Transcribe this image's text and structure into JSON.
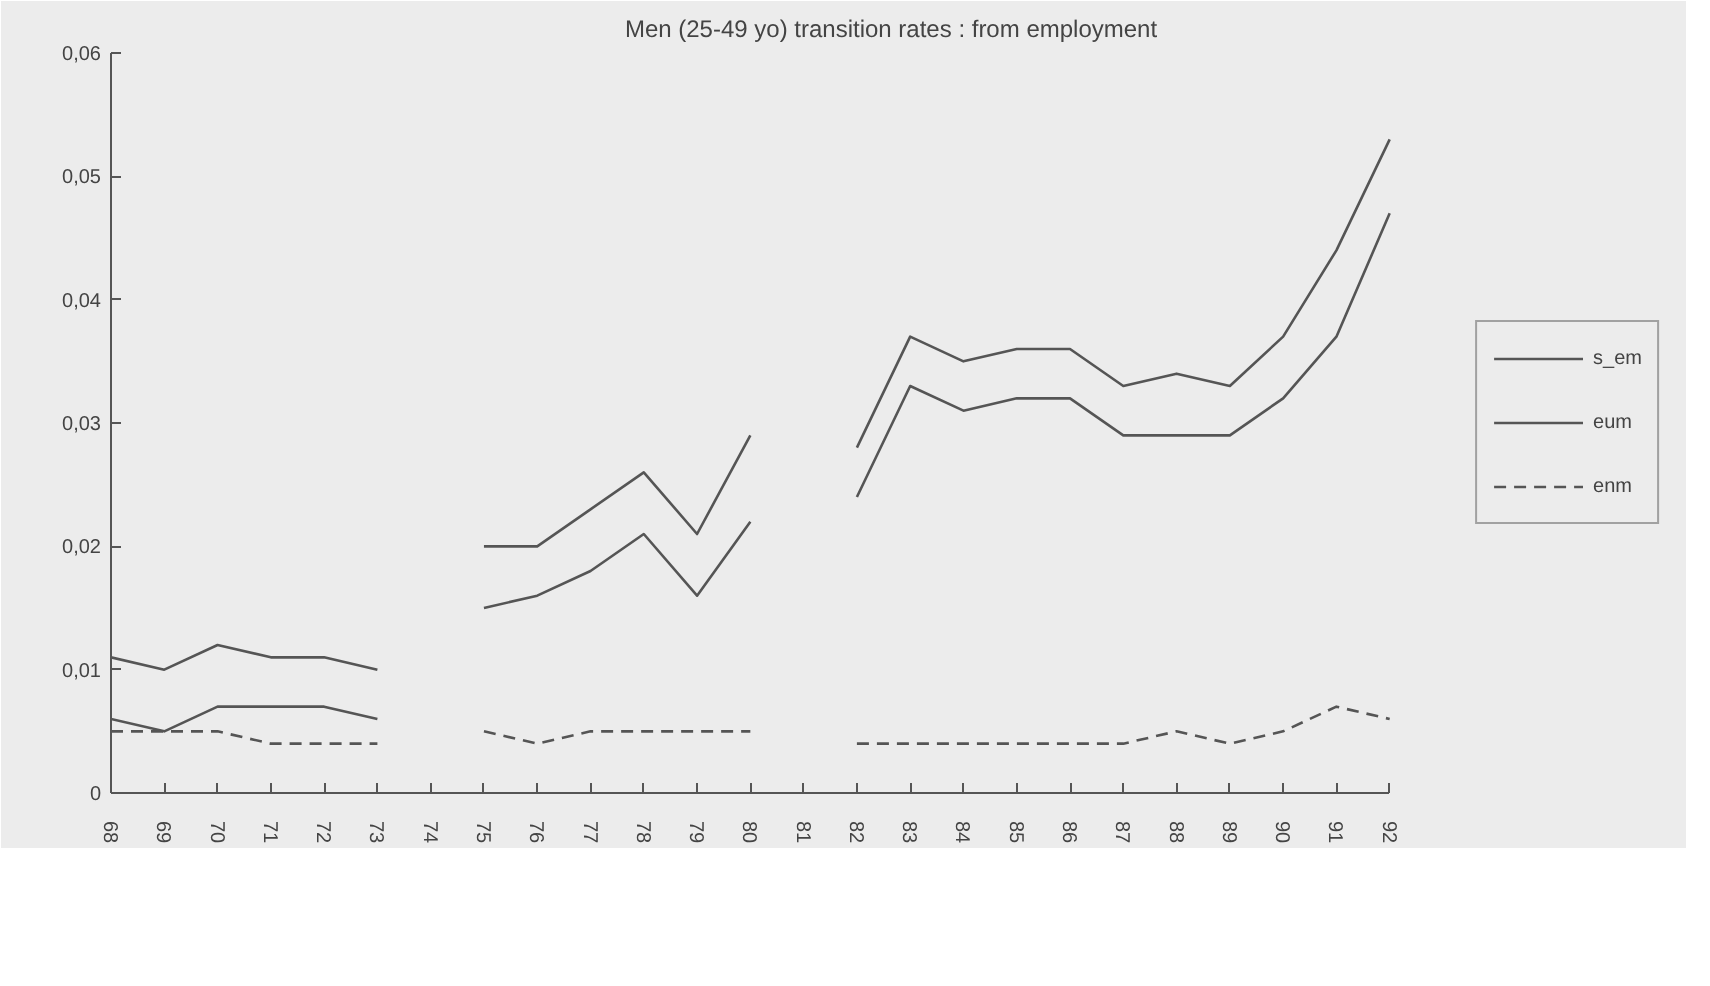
{
  "chart_data": {
    "type": "line",
    "title": "Men (25-49 yo) transition rates : from employment",
    "categories": [
      "68",
      "69",
      "70",
      "71",
      "72",
      "73",
      "74",
      "75",
      "76",
      "77",
      "78",
      "79",
      "80",
      "81",
      "82",
      "83",
      "84",
      "85",
      "86",
      "87",
      "88",
      "89",
      "90",
      "91",
      "92"
    ],
    "series": [
      {
        "name": "s_em",
        "color": "#555555",
        "line_style": "solid",
        "values": [
          0.011,
          0.01,
          0.012,
          0.011,
          0.011,
          0.01,
          null,
          0.02,
          0.02,
          0.023,
          0.026,
          0.021,
          0.029,
          null,
          0.028,
          0.037,
          0.035,
          0.036,
          0.036,
          0.033,
          0.034,
          0.033,
          0.037,
          0.044,
          0.053
        ]
      },
      {
        "name": "eum",
        "color": "#555555",
        "line_style": "solid",
        "values": [
          0.006,
          0.005,
          0.007,
          0.007,
          0.007,
          0.006,
          null,
          0.015,
          0.016,
          0.018,
          0.021,
          0.016,
          0.022,
          null,
          0.024,
          0.033,
          0.031,
          0.032,
          0.032,
          0.029,
          0.029,
          0.029,
          0.032,
          0.037,
          0.047
        ]
      },
      {
        "name": "enm",
        "color": "#555555",
        "line_style": "dashed",
        "values": [
          0.005,
          0.005,
          0.005,
          0.004,
          0.004,
          0.004,
          null,
          0.005,
          0.004,
          0.005,
          0.005,
          0.005,
          0.005,
          null,
          0.004,
          0.004,
          0.004,
          0.004,
          0.004,
          0.004,
          0.005,
          0.004,
          0.005,
          0.007,
          0.006
        ]
      }
    ],
    "ylim": [
      0,
      0.06
    ],
    "yticks": [
      0,
      {
        "value": 0.01,
        "label": "0,01"
      },
      {
        "value": 0.02,
        "label": "0,02"
      },
      {
        "value": 0.03,
        "label": "0,03"
      },
      {
        "value": 0.04,
        "label": "0,04"
      },
      {
        "value": 0.05,
        "label": "0,05"
      },
      {
        "value": 0.06,
        "label": "0,06"
      }
    ],
    "grid": false,
    "legend": "right",
    "marker": "none"
  }
}
